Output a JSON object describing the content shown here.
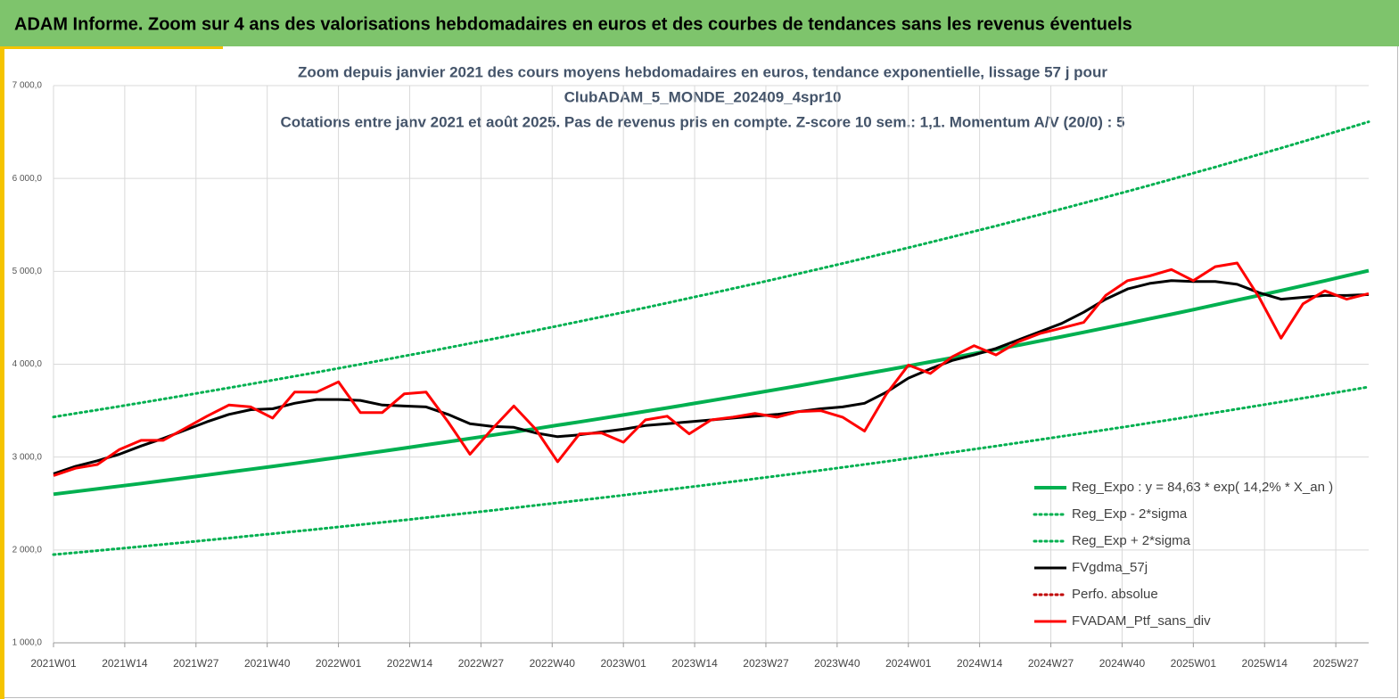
{
  "header": {
    "title": "ADAM Informe. Zoom sur 4 ans des valorisations hebdomadaires en euros et des courbes de tendances sans les revenus éventuels"
  },
  "chart_data": {
    "type": "line",
    "title": [
      "Zoom depuis janvier 2021 des cours moyens hebdomadaires  en euros, tendance exponentielle, lissage 57 j pour",
      "ClubADAM_5_MONDE_202409_4spr10",
      "Cotations  entre janv 2021 et août 2025. Pas de revenus pris en compte. Z-score 10 sem.: 1,1. Momentum A/V (20/0) : 5"
    ],
    "x": [
      0,
      4,
      8,
      12,
      16,
      20,
      24,
      28,
      32,
      36,
      40,
      44,
      48,
      52,
      56,
      60,
      64,
      68,
      72,
      76,
      80,
      84,
      88,
      92,
      96,
      100,
      104,
      108,
      112,
      116,
      120,
      124,
      128,
      132,
      136,
      140,
      144,
      148,
      152,
      156,
      160,
      164,
      168,
      172,
      176,
      180,
      184,
      188,
      192,
      196,
      200,
      204,
      208,
      212,
      216,
      220,
      224,
      228,
      232,
      236,
      240
    ],
    "xlim": [
      0,
      240
    ],
    "xticks": [
      {
        "value": 0,
        "label": "2021W01"
      },
      {
        "value": 13,
        "label": "2021W14"
      },
      {
        "value": 26,
        "label": "2021W27"
      },
      {
        "value": 39,
        "label": "2021W40"
      },
      {
        "value": 52,
        "label": "2022W01"
      },
      {
        "value": 65,
        "label": "2022W14"
      },
      {
        "value": 78,
        "label": "2022W27"
      },
      {
        "value": 91,
        "label": "2022W40"
      },
      {
        "value": 104,
        "label": "2023W01"
      },
      {
        "value": 117,
        "label": "2023W14"
      },
      {
        "value": 130,
        "label": "2023W27"
      },
      {
        "value": 143,
        "label": "2023W40"
      },
      {
        "value": 156,
        "label": "2024W01"
      },
      {
        "value": 169,
        "label": "2024W14"
      },
      {
        "value": 182,
        "label": "2024W27"
      },
      {
        "value": 195,
        "label": "2024W40"
      },
      {
        "value": 208,
        "label": "2025W01"
      },
      {
        "value": 221,
        "label": "2025W14"
      },
      {
        "value": 234,
        "label": "2025W27"
      }
    ],
    "ylim": [
      1000,
      7000
    ],
    "yticks": [
      {
        "value": 1000,
        "label": "1 000,0"
      },
      {
        "value": 2000,
        "label": "2 000,0"
      },
      {
        "value": 3000,
        "label": "3 000,0"
      },
      {
        "value": 4000,
        "label": "4 000,0"
      },
      {
        "value": 5000,
        "label": "5 000,0"
      },
      {
        "value": 6000,
        "label": "6 000,0"
      },
      {
        "value": 7000,
        "label": "7 000,0"
      }
    ],
    "grid": true,
    "legend": "right",
    "series": [
      {
        "name": "Reg_Expo : y = 84,63 * exp( 14,2% *  X_an )",
        "color": "#00b050",
        "style": "solid",
        "values": [
          2600,
          2629,
          2658,
          2687,
          2716,
          2746,
          2776,
          2807,
          2838,
          2869,
          2900,
          2932,
          2964,
          2997,
          3030,
          3063,
          3097,
          3131,
          3165,
          3200,
          3235,
          3270,
          3306,
          3343,
          3379,
          3416,
          3454,
          3492,
          3530,
          3569,
          3608,
          3648,
          3688,
          3728,
          3769,
          3811,
          3853,
          3895,
          3938,
          3981,
          4025,
          4069,
          4114,
          4159,
          4204,
          4251,
          4297,
          4344,
          4392,
          4440,
          4489,
          4538,
          4588,
          4639,
          4690,
          4741,
          4793,
          4846,
          4899,
          4953,
          5007
        ]
      },
      {
        "name": "Reg_Exp - 2*sigma",
        "color": "#00b050",
        "style": "dotted",
        "values": [
          1950,
          1971,
          1993,
          2015,
          2037,
          2060,
          2082,
          2105,
          2128,
          2152,
          2175,
          2199,
          2223,
          2248,
          2272,
          2297,
          2322,
          2348,
          2374,
          2400,
          2426,
          2453,
          2480,
          2507,
          2534,
          2562,
          2590,
          2619,
          2648,
          2677,
          2706,
          2736,
          2766,
          2796,
          2827,
          2858,
          2889,
          2921,
          2953,
          2986,
          3019,
          3052,
          3085,
          3119,
          3153,
          3188,
          3223,
          3258,
          3294,
          3330,
          3367,
          3404,
          3441,
          3479,
          3517,
          3556,
          3594,
          3634,
          3674,
          3715,
          3755
        ]
      },
      {
        "name": "Reg_Exp + 2*sigma",
        "color": "#00b050",
        "style": "dotted",
        "values": [
          3432,
          3470,
          3508,
          3546,
          3585,
          3625,
          3665,
          3705,
          3746,
          3787,
          3828,
          3870,
          3913,
          3956,
          3999,
          4043,
          4088,
          4132,
          4178,
          4224,
          4270,
          4317,
          4364,
          4412,
          4461,
          4510,
          4559,
          4609,
          4660,
          4711,
          4762,
          4815,
          4867,
          4921,
          4975,
          5030,
          5085,
          5141,
          5198,
          5255,
          5312,
          5371,
          5430,
          5489,
          5550,
          5611,
          5672,
          5735,
          5798,
          5861,
          5926,
          5991,
          6057,
          6123,
          6191,
          6259,
          6327,
          6397,
          6467,
          6538,
          6610
        ]
      },
      {
        "name": "FVgdma_57j",
        "color": "#000000",
        "style": "solid",
        "values": [
          2820,
          2900,
          2960,
          3030,
          3120,
          3200,
          3290,
          3380,
          3460,
          3510,
          3520,
          3580,
          3620,
          3620,
          3610,
          3560,
          3550,
          3540,
          3460,
          3360,
          3330,
          3320,
          3260,
          3220,
          3240,
          3270,
          3300,
          3340,
          3360,
          3380,
          3400,
          3420,
          3440,
          3460,
          3490,
          3520,
          3540,
          3580,
          3700,
          3850,
          3950,
          4040,
          4100,
          4170,
          4260,
          4350,
          4440,
          4560,
          4700,
          4810,
          4870,
          4900,
          4890,
          4890,
          4860,
          4770,
          4700,
          4720,
          4740,
          4740,
          4750
        ]
      },
      {
        "name": "Perfo. absolue",
        "color": "#c00000",
        "style": "dotted",
        "values": [
          null,
          null,
          null,
          null,
          null,
          null,
          null,
          null,
          null,
          null,
          null,
          null,
          null,
          null,
          null,
          null,
          null,
          null,
          null,
          null,
          null,
          null,
          null,
          null,
          null,
          null,
          null,
          null,
          null,
          null,
          null,
          null,
          null,
          null,
          null,
          null,
          null,
          null,
          null,
          null,
          null,
          null,
          null,
          null,
          null,
          null,
          null,
          null,
          null,
          null,
          null,
          null,
          null,
          null,
          null,
          null,
          null,
          null,
          null,
          null,
          null
        ]
      },
      {
        "name": "FVADAM_Ptf_sans_div",
        "color": "#ff0000",
        "style": "solid",
        "values": [
          2800,
          2880,
          2920,
          3080,
          3180,
          3180,
          3310,
          3440,
          3560,
          3540,
          3420,
          3700,
          3700,
          3810,
          3480,
          3480,
          3680,
          3700,
          3380,
          3030,
          3300,
          3550,
          3300,
          2950,
          3250,
          3260,
          3160,
          3400,
          3440,
          3250,
          3400,
          3430,
          3470,
          3430,
          3490,
          3500,
          3430,
          3280,
          3680,
          3990,
          3900,
          4080,
          4200,
          4100,
          4240,
          4330,
          4390,
          4450,
          4740,
          4900,
          4950,
          5020,
          4900,
          5050,
          5090,
          4720,
          4280,
          4650,
          4790,
          4700,
          4760
        ]
      }
    ]
  }
}
